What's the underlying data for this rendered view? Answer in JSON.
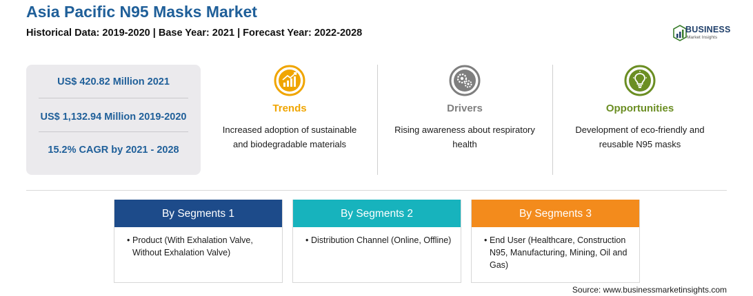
{
  "header": {
    "title": "Asia Pacific N95 Masks Market",
    "subtitle": "Historical Data: 2019-2020 | Base Year: 2021 | Forecast Year: 2022-2028"
  },
  "logo": {
    "name": "BUSINESS",
    "tagline": "Market Insights",
    "icon": "bar-chart-logo-icon"
  },
  "stats": [
    "US$ 420.82 Million 2021",
    "US$ 1,132.94 Million 2019-2020",
    "15.2% CAGR by 2021 - 2028"
  ],
  "factors": [
    {
      "title": "Trends",
      "icon": "growth-chart-icon",
      "color": "#f0a500",
      "desc_lines": [
        "Increased adoption of sustainable",
        "and biodegradable materials"
      ]
    },
    {
      "title": "Drivers",
      "icon": "gears-icon",
      "color": "#7f7f7f",
      "desc_lines": [
        "Rising awareness about respiratory",
        "health"
      ]
    },
    {
      "title": "Opportunities",
      "icon": "lightbulb-icon",
      "color": "#6b8e23",
      "desc_lines": [
        "Development of eco-friendly and",
        "reusable N95 masks"
      ]
    }
  ],
  "segments": [
    {
      "title": "By Segments 1",
      "color": "#1d4b8a",
      "bullet": "•",
      "item": "Product (With Exhalation Valve, Without Exhalation Valve)"
    },
    {
      "title": "By Segments 2",
      "color": "#17b3bd",
      "bullet": "•",
      "item": "Distribution Channel (Online, Offline)"
    },
    {
      "title": "By Segments 3",
      "color": "#f38b1c",
      "bullet": "•",
      "item": "End User (Healthcare, Construction N95, Manufacturing, Mining, Oil and Gas)"
    }
  ],
  "footer": {
    "source": "Source: www.businessmarketinsights.com"
  }
}
